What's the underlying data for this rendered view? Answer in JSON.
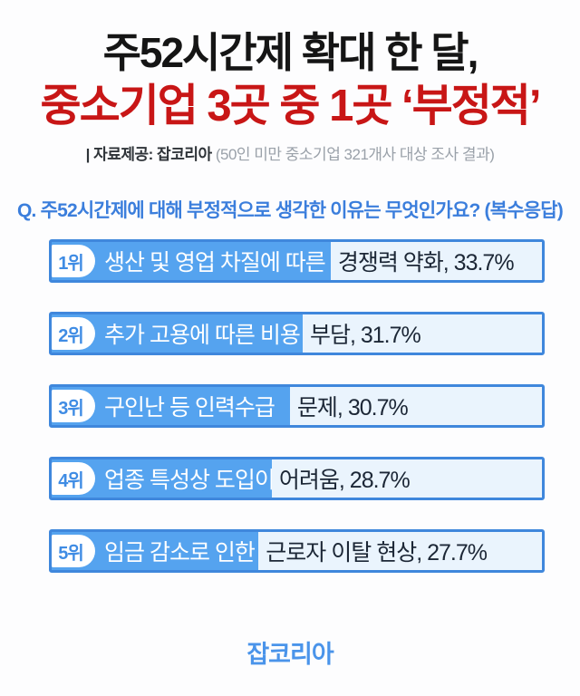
{
  "header": {
    "title_line1": "주52시간제 확대 한 달,",
    "title_line2": "중소기업 3곳 중 1곳 ‘부정적’",
    "source_label": "| 자료제공: 잡코리아",
    "source_note": " (50인 미만 중소기업 321개사 대상 조사 결과)"
  },
  "question": "Q. 주52시간제에 대해 부정적으로 생각한 이유는 무엇인가요? (복수응답)",
  "chart_data": {
    "type": "bar",
    "title": "주52시간제에 대해 부정적으로 생각한 이유 (복수응답)",
    "unit": "%",
    "legend_position": "none",
    "grid": false,
    "categories": [
      "생산 및 영업 차질에 따른 경쟁력 약화",
      "추가 고용에 따른 비용 부담",
      "구인난 등 인력수급 문제",
      "업종 특성상 도입이 어려움",
      "임금 감소로 인한 근로자 이탈 현상"
    ],
    "values": [
      33.7,
      31.7,
      30.7,
      28.7,
      27.7
    ],
    "items": [
      {
        "rank": "1위",
        "text_on_fill": "생산 및 영업 차질에 따른",
        "text_after_fill": "경쟁력 약화, 33.7%",
        "value": 33.7,
        "fill_width": "56.9%"
      },
      {
        "rank": "2위",
        "text_on_fill": "추가 고용에 따른 비용",
        "text_after_fill": "부담, 31.7%",
        "value": 31.7,
        "fill_width": "51.2%"
      },
      {
        "rank": "3위",
        "text_on_fill": "구인난 등 인력수급",
        "text_after_fill": "문제, 30.7%",
        "value": 30.7,
        "fill_width": "48.6%"
      },
      {
        "rank": "4위",
        "text_on_fill": "업종 특성상 도입이",
        "text_after_fill": "어려움, 28.7%",
        "value": 28.7,
        "fill_width": "44.9%"
      },
      {
        "rank": "5위",
        "text_on_fill": "임금 감소로 인한",
        "text_after_fill": "근로자 이탈 현상, 27.7%",
        "value": 27.7,
        "fill_width": "42.2%"
      }
    ]
  },
  "footer": {
    "logo": "잡코리아"
  },
  "colors": {
    "title_black": "#151515",
    "title_red": "#c81616",
    "question_blue": "#3b7edc",
    "bar_border": "#3f87dc",
    "bar_fill": "#55a3ef",
    "bar_light_bg": "#eaf4fd",
    "badge_text": "#3f8ce4",
    "dark_text": "#1c2736",
    "logo_blue": "#4a94ea"
  }
}
